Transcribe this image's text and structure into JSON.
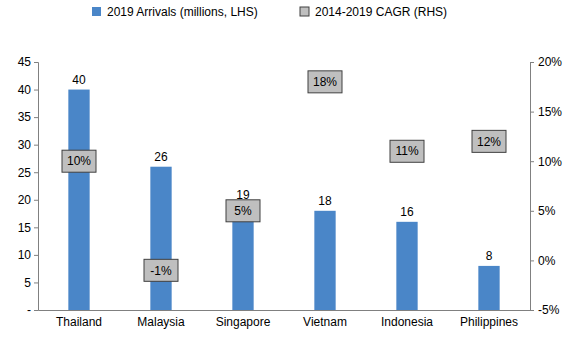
{
  "chart_data": {
    "type": "bar",
    "categories": [
      "Thailand",
      "Malaysia",
      "Singapore",
      "Vietnam",
      "Indonesia",
      "Philippines"
    ],
    "series": [
      {
        "name": "2019 Arrivals (millions, LHS)",
        "type": "bar",
        "color": "#4a86c8",
        "values": [
          40,
          26,
          19,
          18,
          16,
          8
        ]
      },
      {
        "name": "2014-2019 CAGR (RHS)",
        "type": "scatter",
        "marker": "square",
        "color": "#bfbfbf",
        "axis": "y2",
        "values": [
          10,
          -1,
          5,
          18,
          11,
          12
        ],
        "value_labels": [
          "10%",
          "-1%",
          "5%",
          "18%",
          "11%",
          "12%"
        ]
      }
    ],
    "ylim": [
      0,
      45
    ],
    "yticks": [
      {
        "value": 0,
        "label": "-"
      },
      5,
      10,
      15,
      20,
      25,
      30,
      35,
      40,
      45
    ],
    "y2lim": [
      -5,
      20
    ],
    "y2ticks": [
      {
        "value": -5,
        "label": "-5%"
      },
      {
        "value": 0,
        "label": "0%"
      },
      {
        "value": 5,
        "label": "5%"
      },
      {
        "value": 10,
        "label": "10%"
      },
      {
        "value": 15,
        "label": "15%"
      },
      {
        "value": 20,
        "label": "20%"
      }
    ],
    "data_labels": true,
    "legend": "top",
    "grid": false
  }
}
